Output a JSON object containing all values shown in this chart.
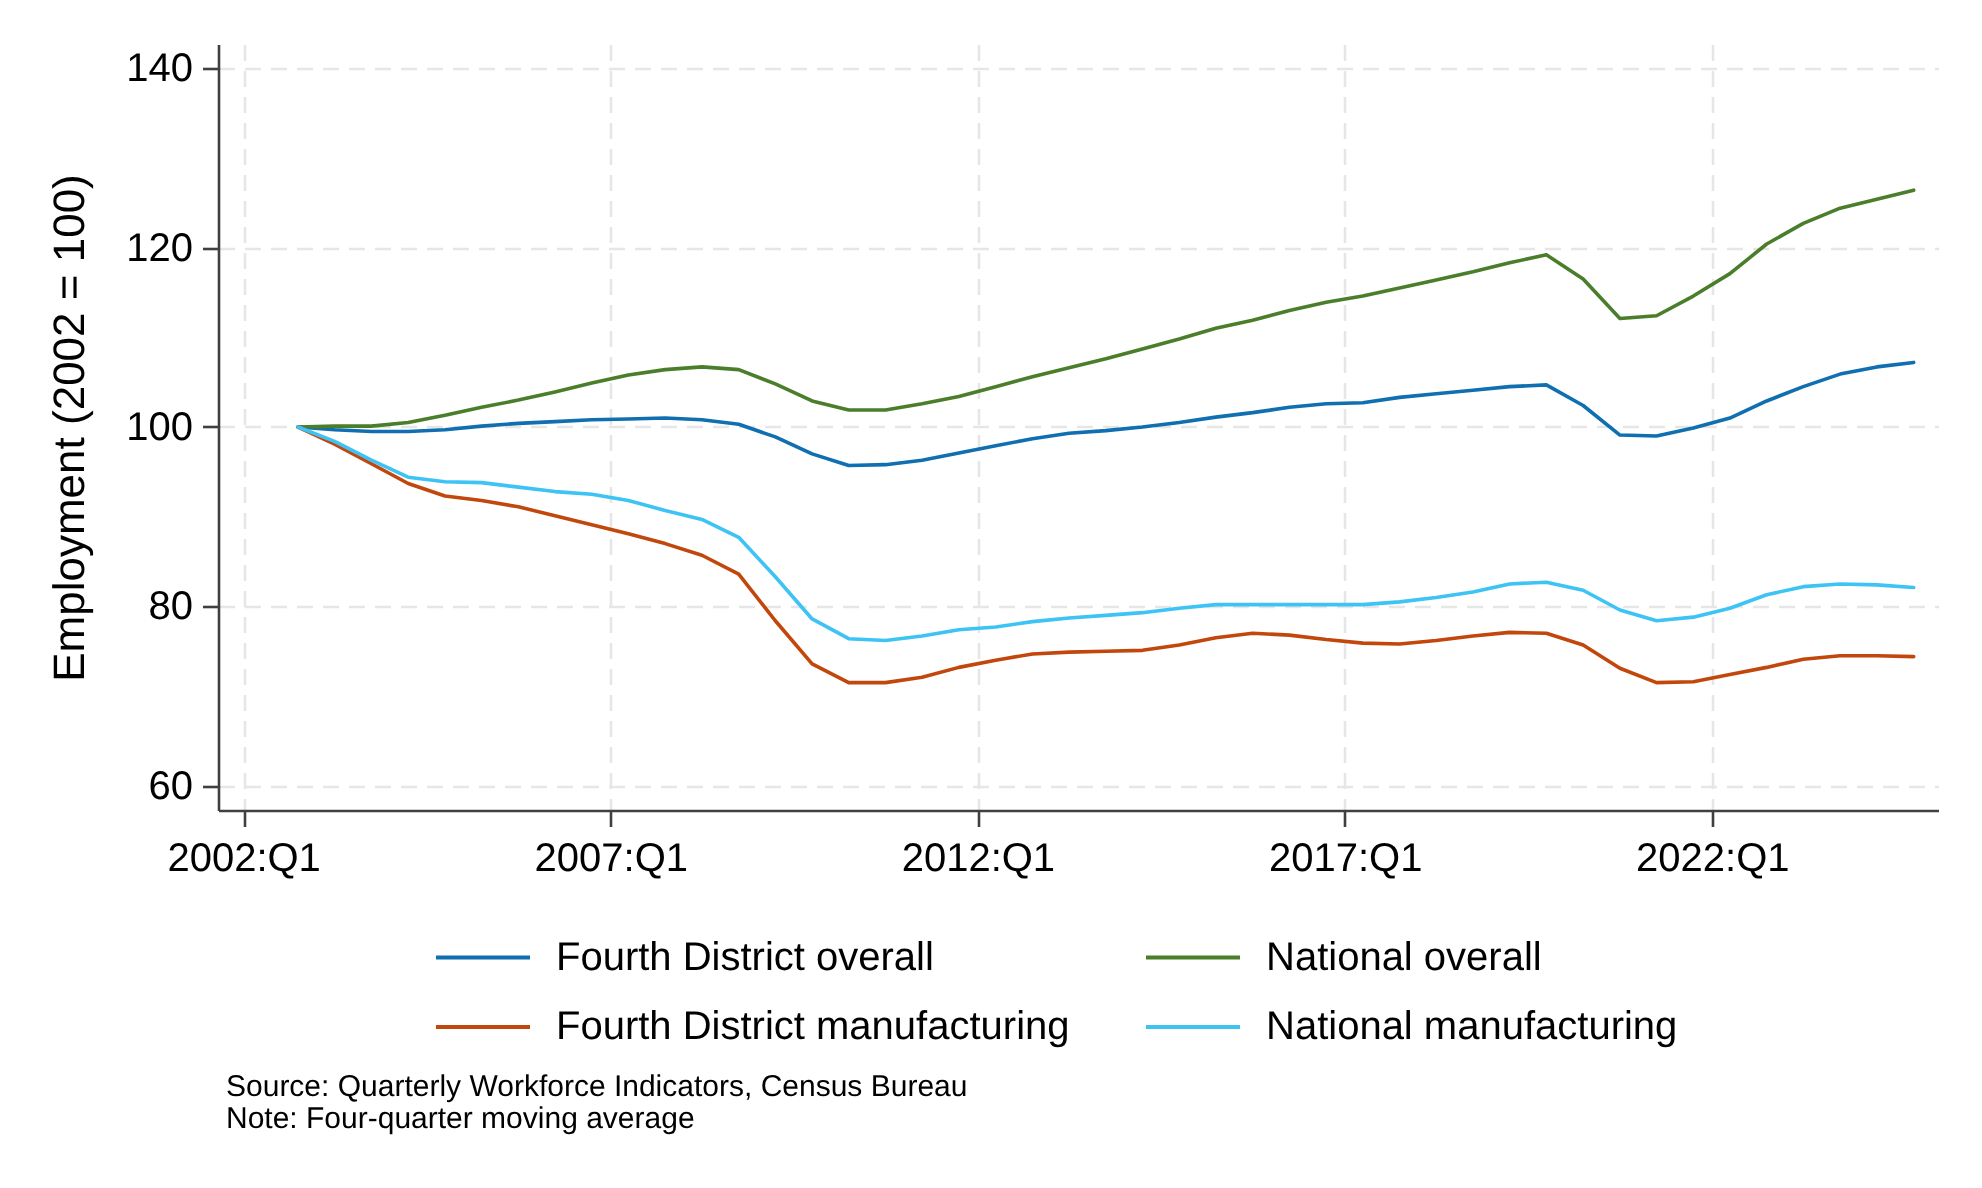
{
  "chart_data": {
    "type": "line",
    "ylabel": "Employment (2002 = 100)",
    "annotations": [
      "Source: Quarterly Workforce Indicators, Census Bureau",
      "Note: Four-quarter moving average"
    ],
    "x": [
      "2002-10",
      "2003-04",
      "2003-10",
      "2004-04",
      "2004-10",
      "2005-04",
      "2005-10",
      "2006-04",
      "2006-10",
      "2007-04",
      "2007-10",
      "2008-04",
      "2008-10",
      "2009-04",
      "2009-10",
      "2010-04",
      "2010-10",
      "2011-04",
      "2011-10",
      "2012-04",
      "2012-10",
      "2013-04",
      "2013-10",
      "2014-04",
      "2014-10",
      "2015-04",
      "2015-10",
      "2016-04",
      "2016-10",
      "2017-04",
      "2017-10",
      "2018-04",
      "2018-10",
      "2019-04",
      "2019-10",
      "2020-04",
      "2020-10",
      "2021-04",
      "2021-10",
      "2022-04",
      "2022-10",
      "2023-04",
      "2023-10",
      "2024-04",
      "2024-10"
    ],
    "series": [
      {
        "name": "Fourth District overall",
        "color": "#0f6fb0",
        "values": [
          100,
          99.7,
          99.5,
          99.5,
          99.7,
          100.1,
          100.4,
          100.6,
          100.8,
          100.9,
          101.0,
          100.8,
          100.3,
          98.9,
          97.0,
          95.7,
          95.8,
          96.3,
          97.1,
          97.9,
          98.7,
          99.3,
          99.6,
          100.0,
          100.5,
          101.1,
          101.6,
          102.2,
          102.6,
          102.7,
          103.3,
          103.7,
          104.1,
          104.5,
          104.7,
          102.4,
          99.1,
          99.0,
          99.9,
          101.0,
          102.9,
          104.5,
          105.9,
          106.7,
          107.2
        ]
      },
      {
        "name": "National overall",
        "color": "#4a7e2b",
        "values": [
          100,
          100.1,
          100.1,
          100.5,
          101.3,
          102.2,
          103.0,
          103.9,
          104.9,
          105.8,
          106.4,
          106.7,
          106.4,
          104.8,
          102.9,
          101.9,
          101.9,
          102.6,
          103.4,
          104.5,
          105.6,
          106.6,
          107.6,
          108.7,
          109.8,
          111.0,
          111.9,
          113.0,
          113.9,
          114.6,
          115.5,
          116.4,
          117.3,
          118.3,
          119.2,
          116.5,
          112.1,
          112.4,
          114.6,
          117.1,
          120.4,
          122.7,
          124.4,
          125.4,
          126.4
        ]
      },
      {
        "name": "Fourth District manufacturing",
        "color": "#c2470c",
        "values": [
          100,
          98.1,
          95.9,
          93.7,
          92.3,
          91.8,
          91.1,
          90.1,
          89.1,
          88.1,
          87.0,
          85.7,
          83.6,
          78.4,
          73.6,
          71.5,
          71.5,
          72.1,
          73.2,
          74.0,
          74.7,
          74.9,
          75.0,
          75.1,
          75.7,
          76.5,
          77.0,
          76.8,
          76.3,
          75.9,
          75.8,
          76.2,
          76.7,
          77.1,
          77.0,
          75.7,
          73.1,
          71.5,
          71.6,
          72.4,
          73.2,
          74.1,
          74.5,
          74.5,
          74.4
        ]
      },
      {
        "name": "National manufacturing",
        "color": "#3ec3f5",
        "values": [
          100,
          98.4,
          96.3,
          94.4,
          93.9,
          93.8,
          93.3,
          92.8,
          92.5,
          91.8,
          90.7,
          89.7,
          87.7,
          83.3,
          78.6,
          76.4,
          76.2,
          76.7,
          77.4,
          77.7,
          78.3,
          78.7,
          79.0,
          79.3,
          79.8,
          80.2,
          80.2,
          80.2,
          80.2,
          80.2,
          80.5,
          81.0,
          81.6,
          82.5,
          82.7,
          81.8,
          79.6,
          78.4,
          78.8,
          79.8,
          81.3,
          82.2,
          82.5,
          82.4,
          82.1
        ]
      }
    ],
    "xlim": [
      "2001-08-29",
      "2025-01-30"
    ],
    "xticks": [
      {
        "value": "2002-01",
        "label": "2002:Q1"
      },
      {
        "value": "2007-01",
        "label": "2007:Q1"
      },
      {
        "value": "2012-01",
        "label": "2012:Q1"
      },
      {
        "value": "2017-01",
        "label": "2017:Q1"
      },
      {
        "value": "2022-01",
        "label": "2022:Q1"
      }
    ],
    "ylim": [
      57.3,
      142.7
    ],
    "yticks": [
      60,
      80,
      100,
      120,
      140
    ],
    "grid": true,
    "legend": "bottom"
  }
}
